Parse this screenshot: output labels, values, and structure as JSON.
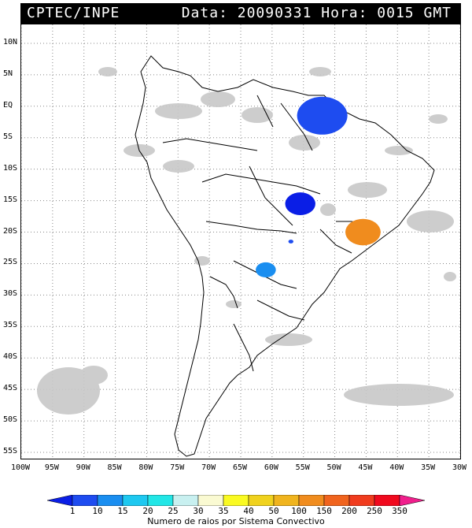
{
  "header": {
    "title": "CPTEC/INPE",
    "datetime": "Data: 20090331 Hora: 0015 GMT"
  },
  "axes": {
    "lat_labels": [
      "10N",
      "5N",
      "EQ",
      "5S",
      "10S",
      "15S",
      "20S",
      "25S",
      "30S",
      "35S",
      "40S",
      "45S",
      "50S",
      "55S"
    ],
    "lon_labels": [
      "100W",
      "95W",
      "90W",
      "85W",
      "80W",
      "75W",
      "70W",
      "65W",
      "60W",
      "55W",
      "50W",
      "45W",
      "40W",
      "35W",
      "30W"
    ],
    "lat_range": [
      13,
      -56
    ],
    "lon_range": [
      -100,
      -30
    ],
    "grid": "dotted"
  },
  "colorbar": {
    "labels": [
      "1",
      "10",
      "15",
      "20",
      "25",
      "30",
      "35",
      "40",
      "50",
      "100",
      "150",
      "200",
      "250",
      "350"
    ],
    "colors": [
      "#0a1ee6",
      "#1e4cf0",
      "#1a8ef0",
      "#1ec8f0",
      "#22e6e6",
      "#c8f0f0",
      "#fafad2",
      "#fafa22",
      "#f0d21e",
      "#f0b41e",
      "#f08c1e",
      "#f0641e",
      "#f03c1e",
      "#f00a1e",
      "#f01e8c"
    ],
    "caption": "Numero de raios por Sistema Convectivo"
  },
  "storms": [
    {
      "lat": -1.5,
      "lon": -52.0,
      "color": "#1e4cf0",
      "size": 1
    },
    {
      "lat": -15.5,
      "lon": -55.5,
      "color": "#0a1ee6",
      "size": 0.6
    },
    {
      "lat": -20.0,
      "lon": -45.5,
      "color": "#f08c1e",
      "size": 0.7
    },
    {
      "lat": -26.0,
      "lon": -61.0,
      "color": "#1a8ef0",
      "size": 0.4
    },
    {
      "lat": -21.5,
      "lon": -57.0,
      "color": "#1e4cf0",
      "size": 0.1
    }
  ]
}
